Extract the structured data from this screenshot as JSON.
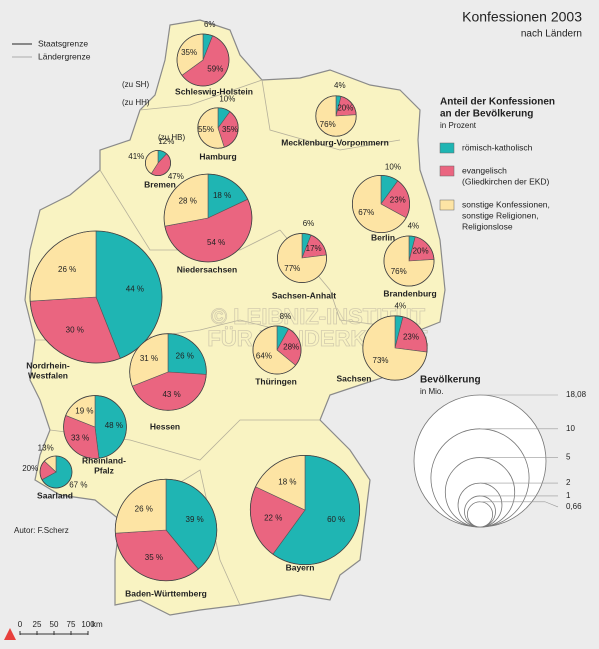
{
  "header": {
    "title": "Konfessionen 2003",
    "subtitle": "nach Ländern"
  },
  "map_legend": {
    "borders": [
      "Staatsgrenze",
      "Ländergrenze"
    ]
  },
  "chart_data": {
    "type": "pie-map",
    "title": [
      "Anteil der Konfessionen",
      "an der Bevölkerung"
    ],
    "subtitle": "in Prozent",
    "series": [
      {
        "name": [
          "römisch-katholisch"
        ],
        "color": "#1fb5b3"
      },
      {
        "name": [
          "evangelisch",
          "(Gliedkirchen der EKD)"
        ],
        "color": "#ea6580"
      },
      {
        "name": [
          "sonstige Konfessionen,",
          "sonstige Religionen,",
          "Religionslose"
        ],
        "color": "#fde4a4"
      }
    ],
    "states": [
      {
        "name": [
          "Schleswig-Holstein"
        ],
        "values": [
          6,
          59,
          35
        ],
        "value_labels": [
          "6%",
          "59%",
          "35%"
        ],
        "population": 2.8
      },
      {
        "name": [
          "Hamburg"
        ],
        "values": [
          10,
          35,
          55
        ],
        "value_labels": [
          "10%",
          "35%",
          "55%"
        ],
        "population": 1.7
      },
      {
        "name": [
          "Bremen"
        ],
        "values": [
          12,
          47,
          41
        ],
        "value_labels": [
          "12%",
          "47%",
          "41%"
        ],
        "population": 0.66
      },
      {
        "name": [
          "Mecklenburg-Vorpommern"
        ],
        "values": [
          4,
          20,
          76
        ],
        "value_labels": [
          "4%",
          "20%",
          "76%"
        ],
        "population": 1.7
      },
      {
        "name": [
          "Niedersachsen"
        ],
        "values": [
          18,
          54,
          28
        ],
        "value_labels": [
          "18 %",
          "54 %",
          "28 %"
        ],
        "population": 8.0
      },
      {
        "name": [
          "Berlin"
        ],
        "values": [
          10,
          23,
          67
        ],
        "value_labels": [
          "10%",
          "23%",
          "67%"
        ],
        "population": 3.4
      },
      {
        "name": [
          "Brandenburg"
        ],
        "values": [
          4,
          20,
          76
        ],
        "value_labels": [
          "4%",
          "20%",
          "76%"
        ],
        "population": 2.6
      },
      {
        "name": [
          "Nordrhein-",
          "Westfalen"
        ],
        "values": [
          44,
          30,
          26
        ],
        "value_labels": [
          "44 %",
          "30 %",
          "26 %"
        ],
        "population": 18.08
      },
      {
        "name": [
          "Sachsen-Anhalt"
        ],
        "values": [
          6,
          17,
          77
        ],
        "value_labels": [
          "6%",
          "17%",
          "77%"
        ],
        "population": 2.5
      },
      {
        "name": [
          "Hessen"
        ],
        "values": [
          26,
          43,
          31
        ],
        "value_labels": [
          "26 %",
          "43 %",
          "31 %"
        ],
        "population": 6.1
      },
      {
        "name": [
          "Thüringen"
        ],
        "values": [
          8,
          28,
          64
        ],
        "value_labels": [
          "8%",
          "28%",
          "64%"
        ],
        "population": 2.4
      },
      {
        "name": [
          "Sachsen"
        ],
        "values": [
          4,
          23,
          73
        ],
        "value_labels": [
          "4%",
          "23%",
          "73%"
        ],
        "population": 4.3
      },
      {
        "name": [
          "Rheinland-",
          "Pfalz"
        ],
        "values": [
          48,
          33,
          19
        ],
        "value_labels": [
          "48 %",
          "33 %",
          "19 %"
        ],
        "population": 4.1
      },
      {
        "name": [
          "Saarland"
        ],
        "values": [
          67,
          20,
          13
        ],
        "value_labels": [
          "67 %",
          "20%",
          "13%"
        ],
        "population": 1.06
      },
      {
        "name": [
          "Baden-Württemberg"
        ],
        "values": [
          39,
          35,
          26
        ],
        "value_labels": [
          "39 %",
          "35 %",
          "26 %"
        ],
        "population": 10.7
      },
      {
        "name": [
          "Bayern"
        ],
        "values": [
          60,
          22,
          18
        ],
        "value_labels": [
          "60 %",
          "22 %",
          "18 %"
        ],
        "population": 12.4
      }
    ],
    "size_legend": {
      "title": "Bevölkerung",
      "subtitle": "in Mio.",
      "ticks": [
        {
          "value": 18.08,
          "label": "18,08"
        },
        10,
        5,
        2,
        1,
        {
          "value": 0.66,
          "label": "0,66"
        }
      ]
    }
  },
  "annotations": [
    "(zu SH)",
    "(zu HH)",
    "(zu HB)"
  ],
  "author": "Autor:  F.Scherz",
  "scale": {
    "ticks": [
      0,
      25,
      50,
      75,
      100
    ],
    "unit": "km"
  },
  "watermark": [
    "© LEIBNIZ-INSTITUT",
    "FÜR LÄNDERKUNDE"
  ]
}
